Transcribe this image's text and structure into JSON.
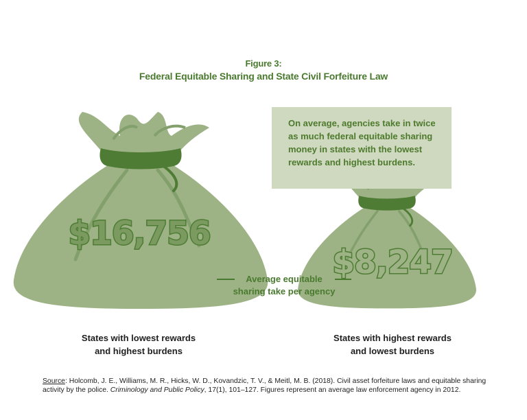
{
  "figure_label": "Figure 3:",
  "figure_title": "Federal Equitable Sharing and State Civil Forfeiture Law",
  "callout_text": "On average, agencies take in twice as much federal equitable sharing money in states with the lowest rewards and highest burdens.",
  "annotation_line1": "Average equitable",
  "annotation_line2": "sharing take per agency",
  "colors": {
    "bag_fill": "#9db385",
    "bag_tie": "#4e7c34",
    "bag_crease": "#83a06c",
    "accent_text": "#4a7a2f",
    "callout_bg": "#cfd9c0"
  },
  "chart_data": {
    "type": "bar",
    "style": "pictograph (money bags)",
    "categories": [
      "States with lowest rewards and highest burdens",
      "States with highest rewards and lowest burdens"
    ],
    "series": [
      {
        "values": [
          16756,
          8247
        ],
        "value_labels": [
          "$16,756",
          "$8,247"
        ]
      }
    ]
  },
  "category_labels": [
    "States with lowest rewards\nand highest burdens",
    "States with highest rewards\nand lowest burdens"
  ],
  "source": {
    "key": "Source",
    "text_1": ": Holcomb, J. E., Williams, M. R., Hicks, W. D., Kovandzic, T. V., & Meitl, M. B. (2018). Civil asset forfeiture laws and equitable sharing activity by the police. ",
    "journal": "Criminology and Public Policy",
    "text_2": ", 17(1), 101–127. Figures represent an average law enforcement agency in 2012."
  }
}
